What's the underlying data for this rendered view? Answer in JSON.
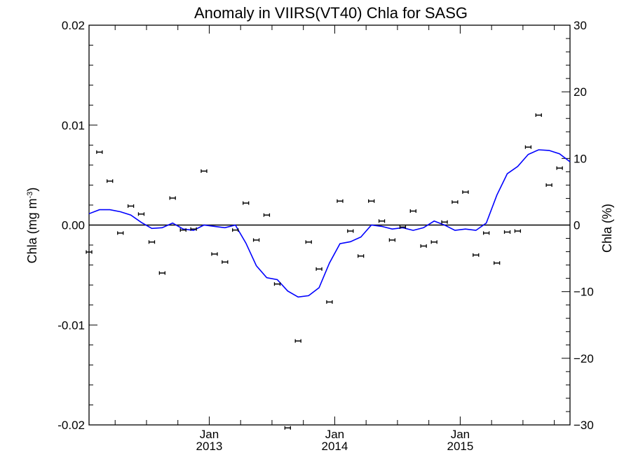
{
  "chart_data": {
    "type": "line",
    "title": "Anomaly in VIIRS(VT40) Chla for SASG",
    "ylabel_left": "Chla (mg m",
    "ylabel_left_superscript": "-3",
    "ylabel_left_close": ")",
    "ylabel_right": "Chla (%)",
    "xlim": [
      2012.042,
      2015.875
    ],
    "ylim": [
      -0.02,
      0.02
    ],
    "ylim_right": [
      -30,
      30
    ],
    "yticks_left": [
      {
        "value": -0.02,
        "label": "-0.02"
      },
      {
        "value": -0.01,
        "label": "-0.01"
      },
      {
        "value": 0.0,
        "label": "0.00"
      },
      {
        "value": 0.01,
        "label": "0.01"
      },
      {
        "value": 0.02,
        "label": "0.02"
      }
    ],
    "yticks_right": [
      {
        "value": -30,
        "label": "-30"
      },
      {
        "value": -20,
        "label": "-20"
      },
      {
        "value": -10,
        "label": "-10"
      },
      {
        "value": 0,
        "label": "0"
      },
      {
        "value": 10,
        "label": "10"
      },
      {
        "value": 20,
        "label": "20"
      },
      {
        "value": 30,
        "label": "30"
      }
    ],
    "xticks": [
      {
        "value": 2013.0,
        "month": "Jan",
        "year": "2013"
      },
      {
        "value": 2014.0,
        "month": "Jan",
        "year": "2014"
      },
      {
        "value": 2015.0,
        "month": "Jan",
        "year": "2015"
      }
    ],
    "line_color": "#0000ff",
    "marker_color": "#000000",
    "zero_line": true,
    "series": [
      {
        "kind": "line",
        "axis": "right",
        "x": [
          2012.042,
          2012.125,
          2012.208,
          2012.292,
          2012.375,
          2012.458,
          2012.542,
          2012.625,
          2012.708,
          2012.792,
          2012.875,
          2012.958,
          2013.042,
          2013.125,
          2013.208,
          2013.292,
          2013.375,
          2013.458,
          2013.542,
          2013.625,
          2013.708,
          2013.792,
          2013.875,
          2013.958,
          2014.042,
          2014.125,
          2014.208,
          2014.292,
          2014.375,
          2014.458,
          2014.542,
          2014.625,
          2014.708,
          2014.792,
          2014.875,
          2014.958,
          2015.042,
          2015.125,
          2015.208,
          2015.292,
          2015.375,
          2015.458,
          2015.542,
          2015.625,
          2015.708,
          2015.792,
          2015.875
        ],
        "values": [
          1.7,
          2.3,
          2.3,
          2.0,
          1.5,
          0.4,
          -0.5,
          -0.4,
          0.3,
          -0.6,
          -0.8,
          0.0,
          -0.2,
          -0.4,
          0.0,
          -2.7,
          -6.1,
          -7.9,
          -8.2,
          -9.9,
          -10.8,
          -10.6,
          -9.4,
          -5.7,
          -2.8,
          -2.5,
          -1.8,
          0.0,
          -0.2,
          -0.6,
          -0.4,
          -0.8,
          -0.4,
          0.6,
          0.0,
          -0.8,
          -0.6,
          -0.8,
          0.3,
          4.5,
          7.7,
          8.8,
          10.6,
          11.3,
          11.2,
          10.7,
          9.5
        ]
      },
      {
        "kind": "errorbar",
        "axis": "left",
        "x": [
          2012.042,
          2012.125,
          2012.208,
          2012.292,
          2012.375,
          2012.458,
          2012.542,
          2012.625,
          2012.708,
          2012.792,
          2012.875,
          2012.958,
          2013.042,
          2013.125,
          2013.208,
          2013.292,
          2013.375,
          2013.458,
          2013.542,
          2013.625,
          2013.708,
          2013.792,
          2013.875,
          2013.958,
          2014.042,
          2014.125,
          2014.208,
          2014.292,
          2014.375,
          2014.458,
          2014.542,
          2014.625,
          2014.708,
          2014.792,
          2014.875,
          2014.958,
          2015.042,
          2015.125,
          2015.208,
          2015.292,
          2015.375,
          2015.458,
          2015.542,
          2015.625,
          2015.708,
          2015.792
        ],
        "values": [
          -0.0027,
          0.0073,
          0.0044,
          -0.0008,
          0.0019,
          0.0011,
          -0.0017,
          -0.0048,
          0.0027,
          -0.0005,
          -0.0004,
          0.0054,
          -0.0029,
          -0.0037,
          -0.0005,
          0.0022,
          -0.0015,
          0.001,
          -0.0059,
          -0.0203,
          -0.0116,
          -0.0017,
          -0.0044,
          -0.0077,
          0.0024,
          -0.0006,
          -0.0031,
          0.0024,
          0.0004,
          -0.0015,
          -0.0002,
          0.0014,
          -0.0021,
          -0.0017,
          0.0003,
          0.0023,
          0.0033,
          -0.003,
          -0.0008,
          -0.0038,
          -0.0007,
          -0.0006,
          0.0078,
          0.011,
          0.004,
          0.0057
        ]
      }
    ]
  }
}
